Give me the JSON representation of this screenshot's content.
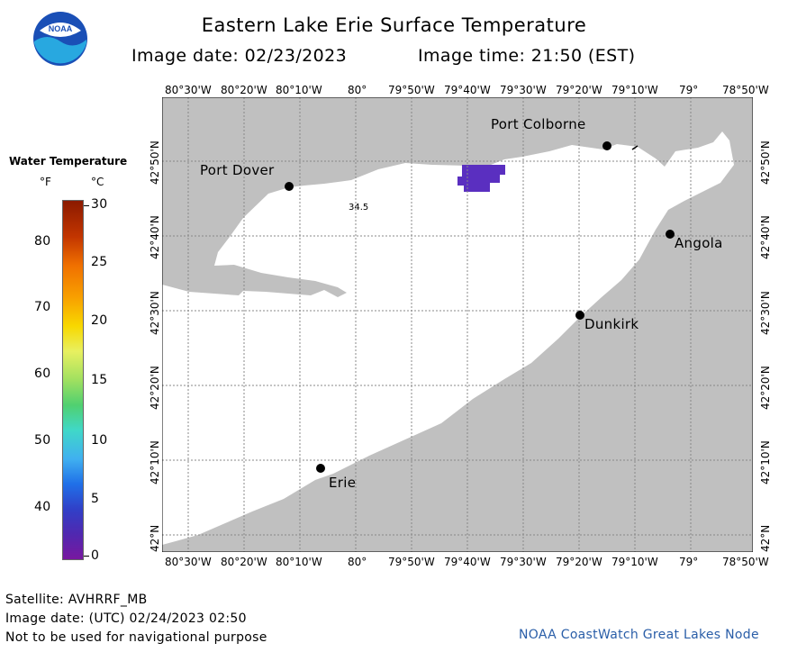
{
  "header": {
    "title": "Eastern Lake Erie Surface Temperature",
    "image_date": "Image date: 02/23/2023",
    "image_time": "Image time: 21:50 (EST)"
  },
  "logo": {
    "text": "NOAA",
    "color_top": "#1a4fb6",
    "color_bottom": "#28a8e0"
  },
  "legend": {
    "title": "Water Temperature",
    "unit_f": "°F",
    "unit_c": "°C",
    "f_ticks": [
      "80",
      "70",
      "60",
      "50",
      "40"
    ],
    "c_ticks": [
      "30",
      "25",
      "20",
      "15",
      "10",
      "5",
      "0"
    ]
  },
  "map": {
    "lon_labels": [
      "80°30'W",
      "80°20'W",
      "80°10'W",
      "80°",
      "79°50'W",
      "79°40'W",
      "79°30'W",
      "79°20'W",
      "79°10'W",
      "79°",
      "78°50'W"
    ],
    "lat_labels": [
      "42°50'N",
      "42°40'N",
      "42°30'N",
      "42°20'N",
      "42°10'N",
      "42°N"
    ],
    "cities": [
      "Port Colborne",
      "Port Dover",
      "Angola",
      "Dunkirk",
      "Erie"
    ],
    "sample_value": "34.5",
    "colors": {
      "land": "#c0c0c0",
      "water": "#ffffff",
      "cold_patch": "#5a2fc0",
      "grid": "#888888"
    }
  },
  "footer": {
    "satellite": "Satellite: AVHRRF_MB",
    "utc_date": "Image date: (UTC) 02/24/2023  02:50",
    "disclaimer": "Not to be used for navigational purpose",
    "credit": "NOAA CoastWatch Great Lakes Node"
  }
}
